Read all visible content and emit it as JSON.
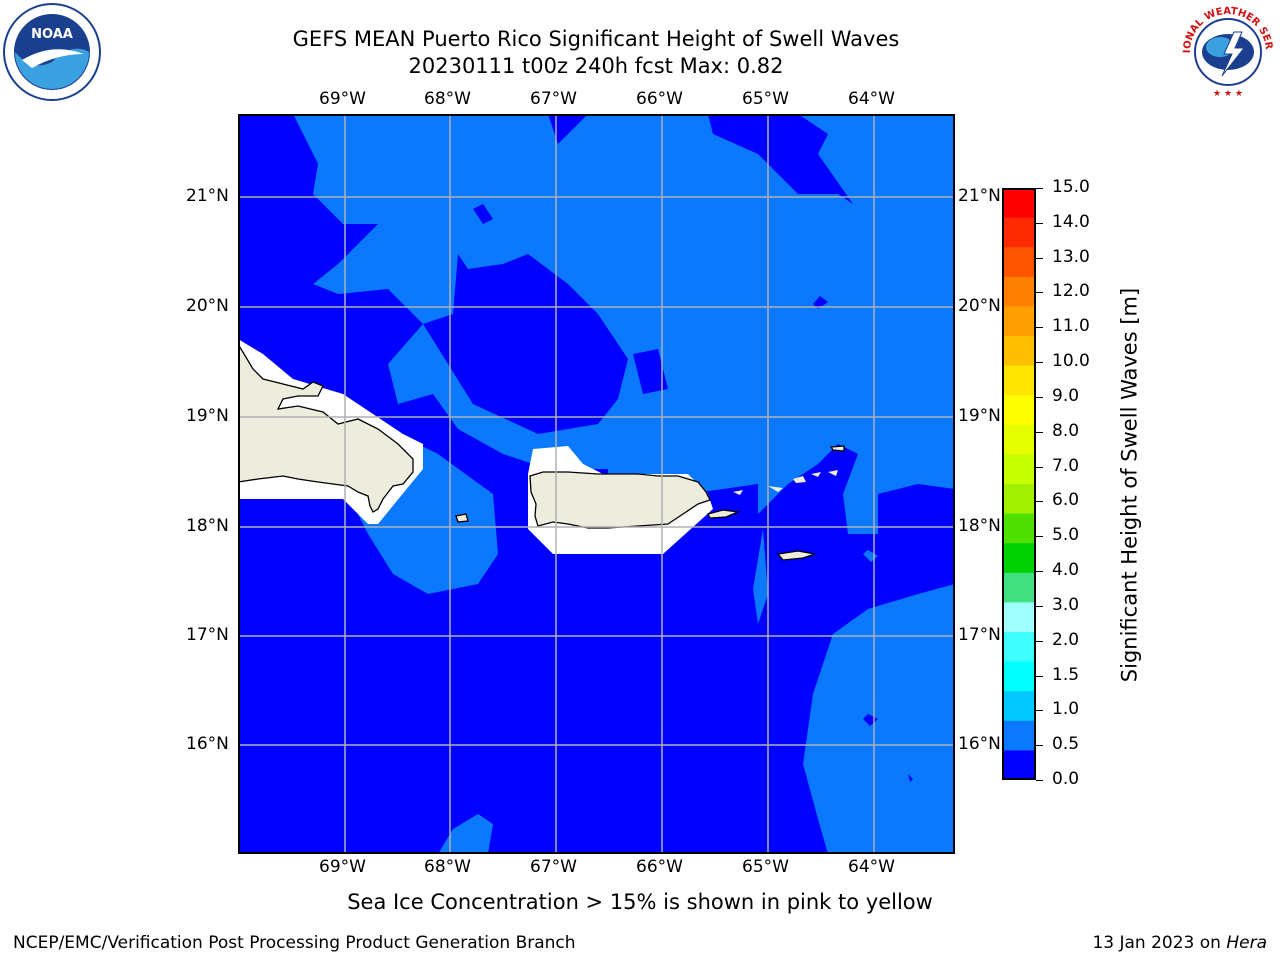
{
  "title": {
    "line1": "GEFS MEAN Puerto Rico Significant Height of Swell Waves",
    "line2": "20230111 t00z 240h fcst   Max: 0.82"
  },
  "map": {
    "lon_labels": [
      "69°W",
      "68°W",
      "67°W",
      "66°W",
      "65°W",
      "64°W"
    ],
    "lat_labels": [
      "21°N",
      "20°N",
      "19°N",
      "18°N",
      "17°N",
      "16°N"
    ],
    "colors": {
      "band_0_0p5": "#0000ff",
      "band_0p5_1p0": "#0a78ff",
      "land": "#eeecdc",
      "grid": "#b0b0b0"
    }
  },
  "colorbar": {
    "label": "Significant Height of Swell Waves [m]",
    "ticks": [
      "15.0",
      "14.0",
      "13.0",
      "12.0",
      "11.0",
      "10.0",
      "9.0",
      "8.0",
      "7.0",
      "6.0",
      "5.0",
      "4.0",
      "3.0",
      "2.0",
      "1.5",
      "1.0",
      "0.5",
      "0.0"
    ],
    "colors": [
      "#ff0000",
      "#ff2a00",
      "#ff5500",
      "#ff8000",
      "#ffa000",
      "#ffbf00",
      "#ffe600",
      "#ffff00",
      "#e6ff00",
      "#c8ff00",
      "#a0f000",
      "#50e000",
      "#00d000",
      "#40e080",
      "#a0ffff",
      "#40ffff",
      "#00ffff",
      "#00c8ff",
      "#0a78ff",
      "#0000ff"
    ]
  },
  "subtitle": "Sea Ice Concentration > 15% is shown in pink to yellow",
  "footer": {
    "left": "NCEP/EMC/Verification Post Processing Product Generation Branch",
    "right_date": "13 Jan 2023 on",
    "right_host": "Hera"
  },
  "logos": {
    "noaa_text": "NOAA",
    "nws_text": "NATIONAL WEATHER SERVICE"
  }
}
